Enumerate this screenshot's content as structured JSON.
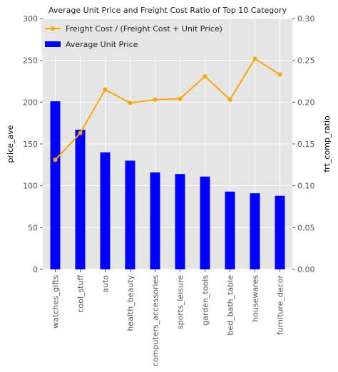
{
  "chart_data": {
    "type": "bar+line",
    "title": "Average Unit Price and Freight Cost Ratio of Top 10 Category",
    "categories": [
      "watches_gifts",
      "cool_stuff",
      "auto",
      "health_beauty",
      "computers_accessories",
      "sports_leisure",
      "garden_tools",
      "bed_bath_table",
      "housewares",
      "furniture_decor"
    ],
    "ylabel_left": "price_ave",
    "ylabel_right": "frt_comp_ratio",
    "ylim_left": [
      0,
      300
    ],
    "ylim_right": [
      0.0,
      0.3
    ],
    "yticks_left": [
      "0",
      "50",
      "100",
      "150",
      "200",
      "250",
      "300"
    ],
    "yticks_right": [
      "0.00",
      "0.05",
      "0.10",
      "0.15",
      "0.20",
      "0.25",
      "0.30"
    ],
    "grid": true,
    "legend_position": "upper-left",
    "series": [
      {
        "name": "Freight Cost / (Freight Cost + Unit Price)",
        "type": "line",
        "axis": "right",
        "color": "#FFA500",
        "values": [
          0.131,
          0.163,
          0.215,
          0.199,
          0.203,
          0.204,
          0.231,
          0.203,
          0.252,
          0.233
        ]
      },
      {
        "name": "Average Unit Price",
        "type": "bar",
        "axis": "left",
        "color": "#0000FF",
        "values": [
          201,
          167,
          140,
          130,
          116,
          114,
          111,
          93,
          91,
          88
        ]
      }
    ]
  },
  "colors": {
    "plot_background": "#E5E5E5",
    "grid": "#FFFFFF",
    "axis_text": "#555555"
  }
}
